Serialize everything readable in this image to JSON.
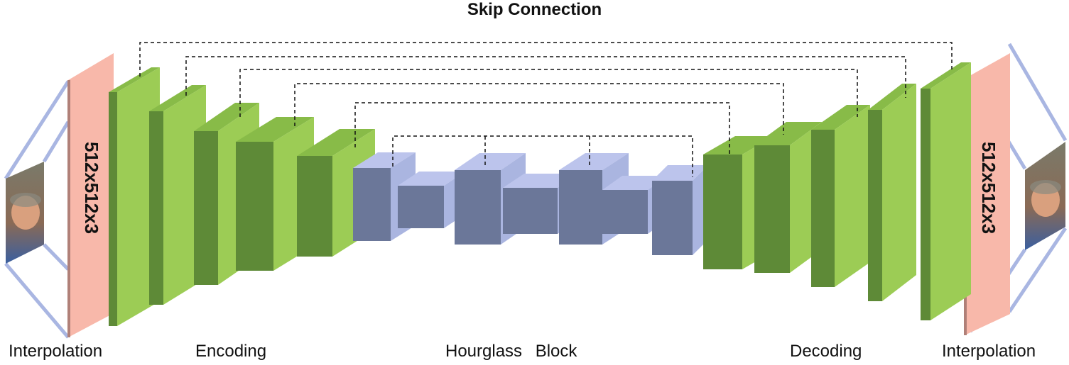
{
  "title": "Skip Connection",
  "input_plane": {
    "label": "512x512x3"
  },
  "output_plane": {
    "label": "512x512x3"
  },
  "labels": {
    "interpolation_left": "Interpolation",
    "encoding": "Encoding",
    "hourglass": "Hourglass Block",
    "decoding": "Decoding",
    "interpolation_right": "Interpolation"
  },
  "colors": {
    "encoder_decoder": "#9ccc55",
    "hourglass": "#aab5e0",
    "plane": "#f8b8aa",
    "connector": "#a9b6e2",
    "skip_line": "#111111"
  }
}
